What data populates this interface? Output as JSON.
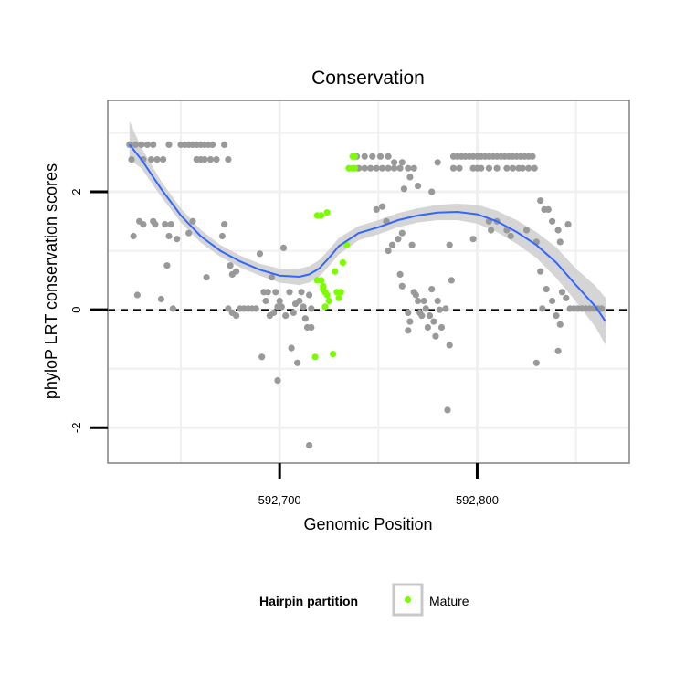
{
  "chart_data": {
    "type": "scatter",
    "title": "Conservation",
    "xlabel": "Genomic Position",
    "ylabel": "phyloP LRT conservation scores",
    "xlim": [
      592613,
      592877
    ],
    "ylim": [
      -2.6,
      3.55
    ],
    "x_ticks": [
      {
        "value": 592700,
        "label": "592,700"
      },
      {
        "value": 592800,
        "label": "592,800"
      }
    ],
    "y_ticks": [
      {
        "value": -2,
        "label": "-2"
      },
      {
        "value": 0,
        "label": "0"
      },
      {
        "value": 2,
        "label": "2"
      }
    ],
    "reference_line": {
      "y": 0,
      "style": "dashed"
    },
    "legend": {
      "title": "Hairpin partition",
      "entries": [
        {
          "label": "Mature",
          "color": "#7cfc00"
        }
      ]
    },
    "colors": {
      "other": "#999999",
      "mature": "#7cfc00",
      "smooth_line": "#3366ff",
      "confidence_band": "#d0d0d0",
      "panel_border": "#808080",
      "grid": "#f0f0f0"
    },
    "series": [
      {
        "name": "Other",
        "color": "#999999",
        "points": [
          [
            592624,
            2.8
          ],
          [
            592627,
            2.8
          ],
          [
            592630,
            2.8
          ],
          [
            592633,
            2.8
          ],
          [
            592636,
            2.8
          ],
          [
            592625,
            2.55
          ],
          [
            592631,
            2.55
          ],
          [
            592635,
            2.55
          ],
          [
            592638,
            2.55
          ],
          [
            592641,
            2.55
          ],
          [
            592644,
            2.8
          ],
          [
            592626,
            1.25
          ],
          [
            592629,
            1.5
          ],
          [
            592631,
            1.45
          ],
          [
            592636,
            1.5
          ],
          [
            592637,
            1.45
          ],
          [
            592642,
            1.45
          ],
          [
            592645,
            1.45
          ],
          [
            592644,
            1.25
          ],
          [
            592648,
            1.2
          ],
          [
            592628,
            0.25
          ],
          [
            592640,
            0.18
          ],
          [
            592646,
            0.02
          ],
          [
            592643,
            0.75
          ],
          [
            592650,
            2.8
          ],
          [
            592652,
            2.8
          ],
          [
            592654,
            2.8
          ],
          [
            592656,
            2.8
          ],
          [
            592658,
            2.8
          ],
          [
            592660,
            2.8
          ],
          [
            592662,
            2.8
          ],
          [
            592664,
            2.8
          ],
          [
            592666,
            2.8
          ],
          [
            592672,
            2.8
          ],
          [
            592658,
            2.55
          ],
          [
            592660,
            2.55
          ],
          [
            592662,
            2.55
          ],
          [
            592665,
            2.55
          ],
          [
            592668,
            2.55
          ],
          [
            592674,
            2.55
          ],
          [
            592654,
            1.3
          ],
          [
            592656,
            1.5
          ],
          [
            592672,
            1.45
          ],
          [
            592671,
            1.25
          ],
          [
            592675,
            0.75
          ],
          [
            592663,
            0.55
          ],
          [
            592676,
            0.6
          ],
          [
            592678,
            0.65
          ],
          [
            592674,
            0.02
          ],
          [
            592676,
            -0.05
          ],
          [
            592678,
            -0.1
          ],
          [
            592680,
            0.02
          ],
          [
            592682,
            0.02
          ],
          [
            592684,
            0.02
          ],
          [
            592686,
            0.02
          ],
          [
            592688,
            0.02
          ],
          [
            592690,
            0.95
          ],
          [
            592691,
            -0.8
          ],
          [
            592692,
            0.3
          ],
          [
            592693,
            0.15
          ],
          [
            592694,
            0.3
          ],
          [
            592695,
            -0.1
          ],
          [
            592696,
            0.55
          ],
          [
            592697,
            -0.05
          ],
          [
            592698,
            0.3
          ],
          [
            592699,
            0.05
          ],
          [
            592699,
            -1.2
          ],
          [
            592700,
            0.15
          ],
          [
            592701,
            0.05
          ],
          [
            592702,
            1.05
          ],
          [
            592703,
            -0.1
          ],
          [
            592705,
            0.3
          ],
          [
            592706,
            -0.65
          ],
          [
            592707,
            -0.05
          ],
          [
            592708,
            0.1
          ],
          [
            592709,
            -0.9
          ],
          [
            592710,
            0.15
          ],
          [
            592711,
            0.3
          ],
          [
            592712,
            0.05
          ],
          [
            592713,
            -0.15
          ],
          [
            592714,
            -0.3
          ],
          [
            592715,
            0.25
          ],
          [
            592716,
            -0.3
          ],
          [
            592715,
            -2.3
          ],
          [
            592716,
            0.02
          ],
          [
            592739,
            2.6
          ],
          [
            592743,
            2.6
          ],
          [
            592747,
            2.6
          ],
          [
            592751,
            2.6
          ],
          [
            592755,
            2.6
          ],
          [
            592740,
            2.4
          ],
          [
            592743,
            2.4
          ],
          [
            592746,
            2.4
          ],
          [
            592749,
            2.4
          ],
          [
            592752,
            2.4
          ],
          [
            592755,
            2.4
          ],
          [
            592758,
            2.4
          ],
          [
            592761,
            2.4
          ],
          [
            592765,
            2.4
          ],
          [
            592768,
            2.4
          ],
          [
            592758,
            2.5
          ],
          [
            592762,
            2.5
          ],
          [
            592763,
            2.05
          ],
          [
            592766,
            2.25
          ],
          [
            592777,
            2.0
          ],
          [
            592770,
            2.1
          ],
          [
            592749,
            1.7
          ],
          [
            592752,
            1.75
          ],
          [
            592754,
            1.5
          ],
          [
            592757,
            1.1
          ],
          [
            592760,
            1.2
          ],
          [
            592762,
            1.3
          ],
          [
            592767,
            1.1
          ],
          [
            592786,
            1.1
          ],
          [
            592755,
            1.0
          ],
          [
            592761,
            0.6
          ],
          [
            592762,
            0.4
          ],
          [
            592765,
            -0.05
          ],
          [
            592768,
            0.3
          ],
          [
            592769,
            0.25
          ],
          [
            592770,
            0.15
          ],
          [
            592771,
            -0.05
          ],
          [
            592772,
            -0.1
          ],
          [
            592773,
            0.15
          ],
          [
            592774,
            0.02
          ],
          [
            592775,
            -0.3
          ],
          [
            592776,
            -0.1
          ],
          [
            592777,
            0.35
          ],
          [
            592778,
            -0.2
          ],
          [
            592779,
            -0.45
          ],
          [
            592780,
            0.15
          ],
          [
            592781,
            0.0
          ],
          [
            592782,
            -0.3
          ],
          [
            592784,
            0.02
          ],
          [
            592785,
            -1.7
          ],
          [
            592786,
            -0.6
          ],
          [
            592787,
            0.5
          ],
          [
            592766,
            -0.2
          ],
          [
            592765,
            -0.35
          ],
          [
            592780,
            2.5
          ],
          [
            592788,
            2.6
          ],
          [
            592790,
            2.6
          ],
          [
            592792,
            2.6
          ],
          [
            592794,
            2.6
          ],
          [
            592796,
            2.6
          ],
          [
            592798,
            2.6
          ],
          [
            592800,
            2.6
          ],
          [
            592802,
            2.6
          ],
          [
            592804,
            2.6
          ],
          [
            592806,
            2.6
          ],
          [
            592808,
            2.6
          ],
          [
            592810,
            2.6
          ],
          [
            592812,
            2.6
          ],
          [
            592814,
            2.6
          ],
          [
            592816,
            2.6
          ],
          [
            592818,
            2.6
          ],
          [
            592820,
            2.6
          ],
          [
            592822,
            2.6
          ],
          [
            592824,
            2.6
          ],
          [
            592826,
            2.6
          ],
          [
            592828,
            2.6
          ],
          [
            592788,
            2.4
          ],
          [
            592791,
            2.4
          ],
          [
            592798,
            2.4
          ],
          [
            592800,
            2.4
          ],
          [
            592802,
            2.4
          ],
          [
            592806,
            2.4
          ],
          [
            592810,
            2.4
          ],
          [
            592815,
            2.4
          ],
          [
            592818,
            2.4
          ],
          [
            592821,
            2.4
          ],
          [
            592823,
            2.4
          ],
          [
            592826,
            2.4
          ],
          [
            592829,
            2.4
          ],
          [
            592798,
            1.2
          ],
          [
            592806,
            1.5
          ],
          [
            592807,
            1.35
          ],
          [
            592810,
            1.5
          ],
          [
            592815,
            1.35
          ],
          [
            592817,
            1.25
          ],
          [
            592825,
            1.35
          ],
          [
            592832,
            1.85
          ],
          [
            592834,
            1.7
          ],
          [
            592836,
            1.7
          ],
          [
            592838,
            1.5
          ],
          [
            592841,
            1.35
          ],
          [
            592842,
            1.15
          ],
          [
            592846,
            1.45
          ],
          [
            592830,
            1.15
          ],
          [
            592832,
            0.65
          ],
          [
            592833,
            0.02
          ],
          [
            592835,
            0.35
          ],
          [
            592838,
            0.15
          ],
          [
            592840,
            -0.1
          ],
          [
            592842,
            -0.25
          ],
          [
            592843,
            0.3
          ],
          [
            592845,
            0.2
          ],
          [
            592830,
            -0.9
          ],
          [
            592841,
            -0.7
          ],
          [
            592847,
            0.02
          ],
          [
            592849,
            0.02
          ],
          [
            592851,
            0.02
          ],
          [
            592853,
            0.02
          ],
          [
            592855,
            0.02
          ],
          [
            592857,
            0.02
          ],
          [
            592859,
            0.02
          ],
          [
            592861,
            0.02
          ],
          [
            592863,
            0.02
          ]
        ]
      },
      {
        "name": "Mature",
        "color": "#7cfc00",
        "points": [
          [
            592719,
            1.6
          ],
          [
            592721,
            1.6
          ],
          [
            592724,
            1.65
          ],
          [
            592719,
            0.5
          ],
          [
            592721,
            0.5
          ],
          [
            592722,
            0.4
          ],
          [
            592722,
            0.35
          ],
          [
            592723,
            0.3
          ],
          [
            592724,
            0.25
          ],
          [
            592725,
            0.15
          ],
          [
            592723,
            0.05
          ],
          [
            592728,
            0.65
          ],
          [
            592729,
            0.3
          ],
          [
            592730,
            0.2
          ],
          [
            592731,
            0.3
          ],
          [
            592732,
            0.8
          ],
          [
            592734,
            1.1
          ],
          [
            592735,
            2.4
          ],
          [
            592737,
            2.4
          ],
          [
            592738,
            2.4
          ],
          [
            592737,
            2.6
          ],
          [
            592738,
            2.6
          ],
          [
            592718,
            -0.8
          ],
          [
            592727,
            -0.75
          ]
        ]
      }
    ],
    "smooth": {
      "method": "loess",
      "x": [
        592624,
        592630,
        592640,
        592650,
        592660,
        592670,
        592680,
        592690,
        592700,
        592710,
        592715,
        592720,
        592725,
        592730,
        592740,
        592750,
        592760,
        592770,
        592780,
        592790,
        592800,
        592810,
        592820,
        592830,
        592840,
        592850,
        592860,
        592865
      ],
      "y": [
        2.8,
        2.55,
        2.05,
        1.6,
        1.25,
        1.0,
        0.82,
        0.68,
        0.58,
        0.56,
        0.6,
        0.7,
        0.88,
        1.08,
        1.3,
        1.4,
        1.52,
        1.6,
        1.65,
        1.66,
        1.62,
        1.5,
        1.32,
        1.1,
        0.8,
        0.42,
        0.05,
        -0.2
      ],
      "lower": [
        2.55,
        2.4,
        1.92,
        1.48,
        1.14,
        0.9,
        0.72,
        0.58,
        0.46,
        0.42,
        0.46,
        0.56,
        0.74,
        0.94,
        1.18,
        1.28,
        1.4,
        1.48,
        1.52,
        1.52,
        1.46,
        1.32,
        1.12,
        0.88,
        0.54,
        0.14,
        -0.3,
        -0.6
      ],
      "upper": [
        3.2,
        2.75,
        2.18,
        1.72,
        1.36,
        1.1,
        0.92,
        0.78,
        0.7,
        0.7,
        0.74,
        0.84,
        1.02,
        1.22,
        1.42,
        1.52,
        1.64,
        1.72,
        1.78,
        1.8,
        1.78,
        1.68,
        1.52,
        1.32,
        1.06,
        0.7,
        0.4,
        0.2
      ]
    }
  }
}
